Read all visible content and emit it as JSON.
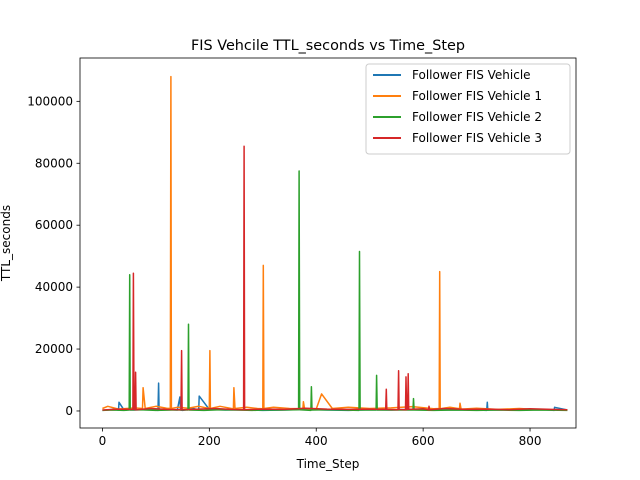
{
  "chart_data": {
    "type": "line",
    "title": "FIS Vehcile TTL_seconds vs Time_Step",
    "xlabel": "Time_Step",
    "ylabel": "TTL_seconds",
    "xlim": [
      -42,
      886
    ],
    "ylim": [
      -5500,
      114000
    ],
    "xticks": [
      0,
      200,
      400,
      600,
      800
    ],
    "yticks": [
      0,
      20000,
      40000,
      60000,
      80000,
      100000
    ],
    "grid": false,
    "legend_position": "top-right",
    "series": [
      {
        "name": "Follower FIS Vehicle",
        "color": "#1f77b4",
        "x": [
          0,
          20,
          30,
          31,
          40,
          60,
          90,
          104,
          105,
          106,
          120,
          140,
          145,
          146,
          150,
          170,
          180,
          181,
          200,
          230,
          260,
          300,
          340,
          380,
          420,
          460,
          500,
          540,
          580,
          620,
          660,
          700,
          719,
          720,
          721,
          740,
          780,
          820,
          845,
          846,
          870
        ],
        "y": [
          200,
          500,
          300,
          2800,
          400,
          300,
          600,
          200,
          9000,
          300,
          500,
          300,
          4500,
          300,
          200,
          800,
          300,
          4800,
          500,
          300,
          400,
          200,
          300,
          500,
          300,
          200,
          400,
          300,
          500,
          300,
          400,
          300,
          200,
          2800,
          300,
          400,
          300,
          500,
          200,
          1200,
          300
        ]
      },
      {
        "name": "Follower FIS Vehicle 1",
        "color": "#ff7f0e",
        "x": [
          0,
          10,
          30,
          60,
          75,
          76,
          80,
          100,
          120,
          127,
          128,
          129,
          140,
          160,
          180,
          200,
          201,
          202,
          220,
          245,
          246,
          248,
          270,
          290,
          300,
          301,
          302,
          320,
          350,
          375,
          376,
          378,
          400,
          410,
          430,
          460,
          500,
          540,
          580,
          620,
          630,
          631,
          632,
          650,
          668,
          669,
          671,
          700,
          740,
          780,
          820,
          870
        ],
        "y": [
          800,
          1500,
          600,
          1000,
          800,
          7500,
          800,
          1500,
          900,
          800,
          108000,
          800,
          1200,
          900,
          1500,
          800,
          19500,
          800,
          1500,
          700,
          7500,
          800,
          1200,
          800,
          700,
          47000,
          800,
          1200,
          800,
          700,
          3000,
          800,
          600,
          5500,
          800,
          1200,
          800,
          1000,
          1400,
          700,
          800,
          45000,
          700,
          1200,
          700,
          2500,
          600,
          900,
          500,
          800,
          400,
          300
        ]
      },
      {
        "name": "Follower FIS Vehicle 2",
        "color": "#2ca02c",
        "x": [
          0,
          20,
          40,
          50,
          51,
          52,
          70,
          100,
          130,
          160,
          161,
          162,
          190,
          220,
          250,
          280,
          300,
          330,
          367,
          368,
          369,
          390,
          391,
          392,
          420,
          450,
          480,
          481,
          482,
          500,
          512,
          513,
          514,
          540,
          570,
          581,
          582,
          583,
          620,
          660,
          700,
          740,
          780,
          820,
          870
        ],
        "y": [
          200,
          300,
          200,
          300,
          44000,
          300,
          400,
          200,
          300,
          300,
          28000,
          300,
          200,
          400,
          300,
          200,
          300,
          300,
          400,
          77500,
          400,
          200,
          7800,
          300,
          400,
          300,
          200,
          51500,
          300,
          300,
          300,
          11500,
          300,
          300,
          300,
          300,
          4000,
          300,
          200,
          300,
          200,
          300,
          200,
          300,
          200
        ]
      },
      {
        "name": "Follower FIS Vehicle 3",
        "color": "#d62728",
        "x": [
          0,
          30,
          57,
          58,
          59,
          61,
          62,
          63,
          90,
          120,
          147,
          148,
          149,
          180,
          210,
          240,
          264,
          265,
          266,
          300,
          340,
          380,
          420,
          460,
          500,
          530,
          531,
          532,
          553,
          554,
          555,
          567,
          568,
          569,
          571,
          572,
          573,
          600,
          610,
          611,
          612,
          640,
          680,
          720,
          760,
          800,
          840,
          870
        ],
        "y": [
          300,
          600,
          500,
          44500,
          500,
          400,
          12500,
          400,
          800,
          500,
          400,
          19500,
          400,
          600,
          800,
          500,
          400,
          85500,
          400,
          600,
          500,
          900,
          600,
          500,
          600,
          500,
          7000,
          500,
          400,
          13000,
          500,
          400,
          11000,
          400,
          500,
          12000,
          500,
          700,
          400,
          1500,
          400,
          800,
          500,
          600,
          400,
          700,
          500,
          400
        ]
      }
    ]
  }
}
